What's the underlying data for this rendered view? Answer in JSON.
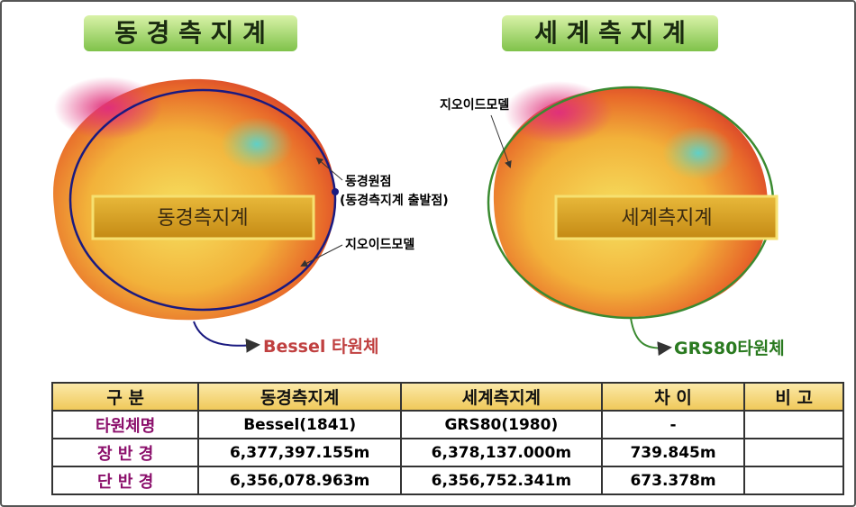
{
  "left": {
    "title": "동 경 측 지 계",
    "label": "동경측지계",
    "origin": "동경원점",
    "origin_note": "(동경측지계 출발점)",
    "geoid": "지오이드모델",
    "ellipsoid": "Bessel 타원체"
  },
  "right": {
    "title": "세 계 측 지 계",
    "label": "세계측지계",
    "geoid": "지오이드모델",
    "ellipsoid": "GRS80타원체"
  },
  "table": {
    "header": [
      "구   분",
      "동경측지계",
      "세계측지계",
      "차 이",
      "비 고"
    ],
    "rows": [
      {
        "name": "타원체명",
        "cells": [
          "Bessel(1841)",
          "GRS80(1980)",
          "-"
        ]
      },
      {
        "name": "장 반 경",
        "cells": [
          "6,377,397.155m",
          "6,378,137.000m",
          "739.845m"
        ]
      },
      {
        "name": "단 반 경",
        "cells": [
          "6,356,078.963m",
          "6,356,752.341m",
          "673.378m"
        ]
      }
    ]
  }
}
